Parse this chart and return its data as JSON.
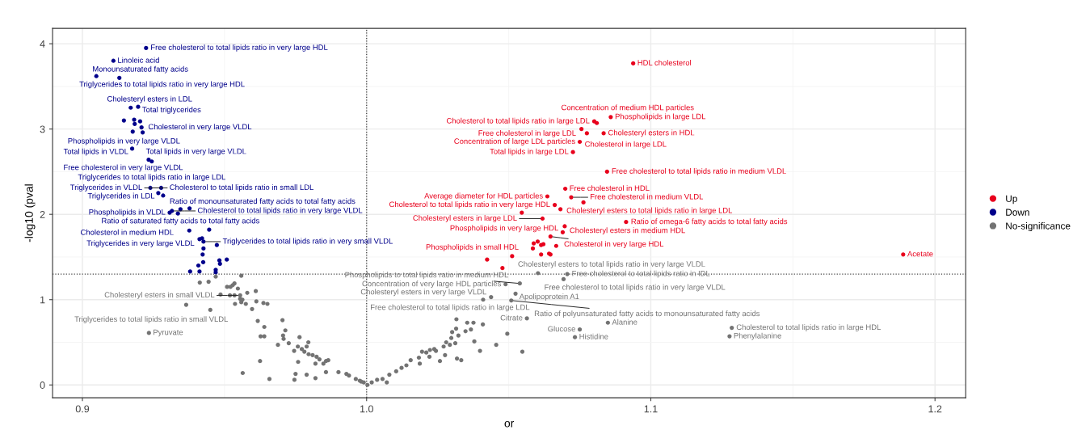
{
  "chart_data": {
    "type": "scatter",
    "xlabel": "or",
    "ylabel": "-log10 (pval",
    "xlim": [
      0.8895,
      1.2108
    ],
    "ylim": [
      -0.15,
      4.18
    ],
    "xticks": [
      {
        "value": 0.9,
        "label": "0.9"
      },
      {
        "value": 1.0,
        "label": "1.0"
      },
      {
        "value": 1.1,
        "label": "1.1"
      },
      {
        "value": 1.2,
        "label": "1.2"
      }
    ],
    "yticks": [
      0,
      1,
      2,
      3,
      4
    ],
    "grid": true,
    "legend": "right",
    "marker": "circle",
    "ref_lines": [
      {
        "axis": "x",
        "value": 1.0,
        "line_style": "dotted",
        "color": "#444444"
      },
      {
        "axis": "y",
        "value": 1.3,
        "line_style": "dotted",
        "color": "#444444"
      }
    ],
    "series": [
      {
        "name": "Up",
        "color": "#e8001c",
        "x": [
          1.0938,
          1.0859,
          1.0801,
          1.081,
          1.0756,
          1.0834,
          1.0775,
          1.075,
          1.0726,
          1.0846,
          1.0699,
          1.072,
          1.0636,
          1.0763,
          1.0662,
          1.0682,
          1.0546,
          1.0619,
          1.0913,
          1.0697,
          1.069,
          1.0647,
          1.0602,
          1.0614,
          1.0622,
          1.0585,
          1.0667,
          1.0512,
          1.0424,
          1.0614,
          1.0642,
          1.0647,
          1.0478,
          1.0588,
          1.1888
        ],
        "values": [
          3.77,
          3.14,
          3.09,
          3.07,
          3.0,
          2.95,
          2.95,
          2.85,
          2.73,
          2.5,
          2.3,
          2.2,
          2.21,
          2.14,
          2.11,
          2.06,
          2.02,
          1.95,
          1.91,
          1.86,
          1.79,
          1.74,
          1.68,
          1.64,
          1.65,
          1.6,
          1.63,
          1.51,
          1.47,
          1.53,
          1.54,
          1.53,
          1.37,
          1.66,
          1.53
        ]
      },
      {
        "name": "Down",
        "color": "#00008b",
        "x": [
          0.9224,
          0.9109,
          0.9049,
          0.913,
          0.917,
          0.9196,
          0.9146,
          0.9182,
          0.9203,
          0.9184,
          0.9208,
          0.9177,
          0.9212,
          0.9175,
          0.9233,
          0.9244,
          0.9239,
          0.9277,
          0.9267,
          0.9284,
          0.9307,
          0.9315,
          0.9345,
          0.9377,
          0.9336,
          0.9376,
          0.9446,
          0.9412,
          0.9421,
          0.9426,
          0.9473,
          0.9426,
          0.9423,
          0.9482,
          0.9508,
          0.9425,
          0.9408,
          0.9484,
          0.9379,
          0.9412,
          0.9469,
          0.9469
        ],
        "values": [
          3.95,
          3.8,
          3.62,
          3.6,
          3.25,
          3.26,
          3.1,
          3.11,
          3.09,
          3.06,
          3.02,
          2.97,
          2.96,
          2.77,
          2.64,
          2.62,
          2.31,
          2.31,
          2.25,
          2.22,
          2.02,
          2.04,
          2.06,
          2.07,
          2.01,
          1.81,
          1.82,
          1.71,
          1.72,
          1.68,
          1.64,
          1.6,
          1.53,
          1.46,
          1.47,
          1.44,
          1.4,
          1.42,
          1.33,
          1.33,
          1.35,
          1.32
        ]
      },
      {
        "name": "No-significance",
        "color": "#737373",
        "x": [
          0.9469,
          0.9559,
          0.9413,
          0.9444,
          0.9509,
          0.9521,
          0.9529,
          0.9535,
          0.9547,
          0.9486,
          0.9519,
          0.9535,
          0.9555,
          0.958,
          0.961,
          0.9555,
          0.9563,
          0.9559,
          0.9575,
          0.9537,
          0.9612,
          0.9637,
          0.9651,
          0.9597,
          0.9365,
          0.945,
          0.9234,
          0.9617,
          0.9704,
          0.964,
          0.9714,
          0.9627,
          0.964,
          0.9706,
          0.9708,
          0.9764,
          0.9688,
          0.9726,
          0.9795,
          0.9758,
          0.9789,
          0.9745,
          0.9772,
          0.9781,
          0.9796,
          0.981,
          0.9824,
          0.9834,
          0.9848,
          0.9857,
          0.9865,
          0.982,
          0.9759,
          0.9625,
          0.9564,
          0.9658,
          0.975,
          0.9746,
          0.9789,
          0.982,
          0.9857,
          0.9901,
          0.9929,
          0.9938,
          0.9962,
          0.9976,
          0.999,
          0.9981,
          1.0003,
          1.0018,
          1.0037,
          1.0056,
          1.0071,
          1.008,
          1.0104,
          1.0123,
          1.014,
          1.0155,
          1.0184,
          1.0187,
          1.0195,
          1.021,
          1.0221,
          1.0223,
          1.0238,
          1.0244,
          1.0258,
          1.0271,
          1.0276,
          1.028,
          1.0293,
          1.0298,
          1.0301,
          1.0312,
          1.0318,
          1.0333,
          1.0315,
          1.0316,
          1.0323,
          1.0348,
          1.0354,
          1.0367,
          1.0376,
          1.0379,
          1.0399,
          1.0409,
          1.0456,
          1.0495,
          1.0548,
          1.041,
          1.0438,
          1.0509,
          1.0524,
          1.0539,
          1.0564,
          1.0603,
          1.0693,
          1.0706,
          1.0733,
          1.075,
          1.0849,
          1.1285,
          1.1277,
          1.0489
        ],
        "values": [
          1.27,
          1.28,
          1.2,
          1.21,
          1.15,
          1.15,
          1.17,
          1.19,
          1.13,
          1.06,
          1.05,
          1.05,
          1.05,
          1.08,
          1.1,
          1.01,
          1.0,
          0.97,
          0.95,
          0.95,
          0.98,
          0.96,
          0.95,
          0.89,
          0.94,
          0.88,
          0.61,
          0.75,
          0.76,
          0.68,
          0.64,
          0.57,
          0.57,
          0.58,
          0.54,
          0.56,
          0.47,
          0.49,
          0.5,
          0.45,
          0.45,
          0.4,
          0.42,
          0.39,
          0.36,
          0.35,
          0.33,
          0.3,
          0.25,
          0.28,
          0.29,
          0.25,
          0.27,
          0.28,
          0.14,
          0.07,
          0.13,
          0.06,
          0.12,
          0.08,
          0.15,
          0.15,
          0.13,
          0.11,
          0.07,
          0.05,
          0.03,
          0.04,
          0.0,
          0.03,
          0.06,
          0.07,
          0.03,
          0.12,
          0.16,
          0.2,
          0.23,
          0.29,
          0.32,
          0.25,
          0.39,
          0.38,
          0.33,
          0.41,
          0.42,
          0.4,
          0.28,
          0.45,
          0.35,
          0.5,
          0.47,
          0.55,
          0.62,
          0.49,
          0.31,
          0.29,
          0.66,
          0.77,
          0.58,
          0.63,
          0.73,
          0.65,
          0.73,
          0.51,
          0.4,
          0.71,
          0.47,
          0.6,
          0.39,
          1.0,
          1.03,
          0.99,
          1.07,
          1.19,
          0.78,
          1.31,
          1.24,
          1.3,
          0.56,
          0.65,
          0.73,
          0.67,
          0.57,
          1.18
        ]
      }
    ],
    "annotations": [
      {
        "text": "Free cholesterol to total lipids ratio in very large HDL",
        "x": 0.9224,
        "y": 3.95
      },
      {
        "text": "Linoleic acid",
        "x": 0.9109,
        "y": 3.8
      },
      {
        "text": "Triglycerides to total lipids ratio in very large HDL",
        "x": 0.9049,
        "y": 3.62
      },
      {
        "text": "Monounsaturated fatty acids",
        "x": 0.913,
        "y": 3.6
      },
      {
        "text": "Cholesteryl esters in LDL",
        "x": 0.917,
        "y": 3.25
      },
      {
        "text": "Total triglycerides",
        "x": 0.9196,
        "y": 3.26
      },
      {
        "text": "Phospholipids in very large VLDL",
        "x": 0.9146,
        "y": 3.1
      },
      {
        "text": "Cholesterol in very large VLDL",
        "x": 0.9208,
        "y": 3.02
      },
      {
        "text": "Total lipids in VLDL",
        "x": 0.9175,
        "y": 2.77
      },
      {
        "text": "Total lipids in very large VLDL",
        "x": 0.9212,
        "y": 2.96
      },
      {
        "text": "Free cholesterol in very large VLDL",
        "x": 0.9233,
        "y": 2.64
      },
      {
        "text": "Triglycerides to total lipids ratio in large LDL",
        "x": 0.9244,
        "y": 2.62
      },
      {
        "text": "Cholesterol to total lipids ratio in small LDL",
        "x": 0.9239,
        "y": 2.31
      },
      {
        "text": "Triglycerides in VLDL",
        "x": 0.9277,
        "y": 2.31
      },
      {
        "text": "Triglycerides in LDL",
        "x": 0.9267,
        "y": 2.25
      },
      {
        "text": "Ratio of monounsaturated fatty acids to total fatty acids",
        "x": 0.9284,
        "y": 2.22
      },
      {
        "text": "Phospholipids in VLDL",
        "x": 0.9307,
        "y": 2.02
      },
      {
        "text": "Ratio of saturated fatty acids to total fatty acids",
        "x": 0.9345,
        "y": 2.06
      },
      {
        "text": "Cholesterol in medium HDL",
        "x": 0.9336,
        "y": 2.01
      },
      {
        "text": "Cholesterol to total lipids ratio in very large VLDL",
        "x": 0.9315,
        "y": 2.04
      },
      {
        "text": "Triglycerides in very large VLDL",
        "x": 0.9412,
        "y": 1.71
      },
      {
        "text": "Triglycerides to total lipids ratio in very small VLDL",
        "x": 0.9426,
        "y": 1.68
      },
      {
        "text": "HDL cholesterol",
        "x": 1.0938,
        "y": 3.77
      },
      {
        "text": "Phospholipids in large LDL",
        "x": 1.0859,
        "y": 3.14
      },
      {
        "text": "Cholesterol to total lipids ratio in large LDL",
        "x": 1.0801,
        "y": 3.09
      },
      {
        "text": "Concentration of medium HDL particles",
        "x": 1.081,
        "y": 3.07
      },
      {
        "text": "Free cholesterol in large LDL",
        "x": 1.0756,
        "y": 3.0
      },
      {
        "text": "Cholesteryl esters in HDL",
        "x": 1.0834,
        "y": 2.95
      },
      {
        "text": "Cholesterol in large LDL",
        "x": 1.0775,
        "y": 2.95
      },
      {
        "text": "Concentration of large LDL particles",
        "x": 1.075,
        "y": 2.85
      },
      {
        "text": "Total lipids in large LDL",
        "x": 1.0726,
        "y": 2.73
      },
      {
        "text": "Free cholesterol to total lipids ratio in medium VLDL",
        "x": 1.0846,
        "y": 2.5
      },
      {
        "text": "Free cholesterol in HDL",
        "x": 1.0699,
        "y": 2.3
      },
      {
        "text": "Free cholesterol in medium VLDL",
        "x": 1.072,
        "y": 2.2
      },
      {
        "text": "Average diameter for HDL particles",
        "x": 1.0636,
        "y": 2.21
      },
      {
        "text": "Cholesteryl esters to total lipids ratio in large LDL",
        "x": 1.0763,
        "y": 2.14
      },
      {
        "text": "Cholesterol to total lipids ratio in very large HDL",
        "x": 1.0662,
        "y": 2.11
      },
      {
        "text": "Phospholipids in very large HDL",
        "x": 1.0682,
        "y": 2.06
      },
      {
        "text": "Cholesteryl esters in large LDL",
        "x": 1.0619,
        "y": 1.95
      },
      {
        "text": "Ratio of omega-6 fatty acids to total fatty acids",
        "x": 1.0913,
        "y": 1.91
      },
      {
        "text": "Cholesteryl esters in medium HDL",
        "x": 1.0697,
        "y": 1.86
      },
      {
        "text": "Cholesterol in very large HDL",
        "x": 1.0647,
        "y": 1.74
      },
      {
        "text": "Phospholipids in small HDL",
        "x": 1.0512,
        "y": 1.51
      },
      {
        "text": "Acetate",
        "x": 1.1888,
        "y": 1.53
      },
      {
        "text": "Cholesteryl esters to total lipids ratio in very large VLDL",
        "x": 1.0603,
        "y": 1.31
      },
      {
        "text": "Free cholesterol to total lipids ratio in IDL",
        "x": 1.0706,
        "y": 1.3
      },
      {
        "text": "Concentration of very large HDL particles",
        "x": 1.0489,
        "y": 1.18
      },
      {
        "text": "Free cholesterol to total lipids ratio in very large VLDL",
        "x": 1.0693,
        "y": 1.24
      },
      {
        "text": "Cholesteryl esters in very large VLDL",
        "x": 1.0438,
        "y": 1.03
      },
      {
        "text": "Apolipoprotein A1",
        "x": 1.0524,
        "y": 1.07
      },
      {
        "text": "Free cholesterol to total lipids ratio in large LDL",
        "x": 1.041,
        "y": 1.0
      },
      {
        "text": "Phospholipids to total lipids ratio in medium HDL",
        "x": 1.0539,
        "y": 1.19
      },
      {
        "text": "Ratio of polyunsaturated fatty acids to monounsaturated fatty acids",
        "x": 1.0509,
        "y": 0.99
      },
      {
        "text": "Cholesteryl esters in small VLDL",
        "x": 0.9555,
        "y": 1.05
      },
      {
        "text": "Alanine",
        "x": 1.0849,
        "y": 0.73
      },
      {
        "text": "Citrate",
        "x": 1.0564,
        "y": 0.78
      },
      {
        "text": "Glucose",
        "x": 1.075,
        "y": 0.65
      },
      {
        "text": "Cholesterol to total lipids ratio in large HDL",
        "x": 1.1285,
        "y": 0.67
      },
      {
        "text": "Histidine",
        "x": 1.0733,
        "y": 0.56
      },
      {
        "text": "Phenylalanine",
        "x": 1.1277,
        "y": 0.57
      },
      {
        "text": "Triglycerides to total lipids ratio in small VLDL",
        "x": 0.9365,
        "y": 0.94
      },
      {
        "text": "Pyruvate",
        "x": 0.9234,
        "y": 0.61
      }
    ]
  }
}
